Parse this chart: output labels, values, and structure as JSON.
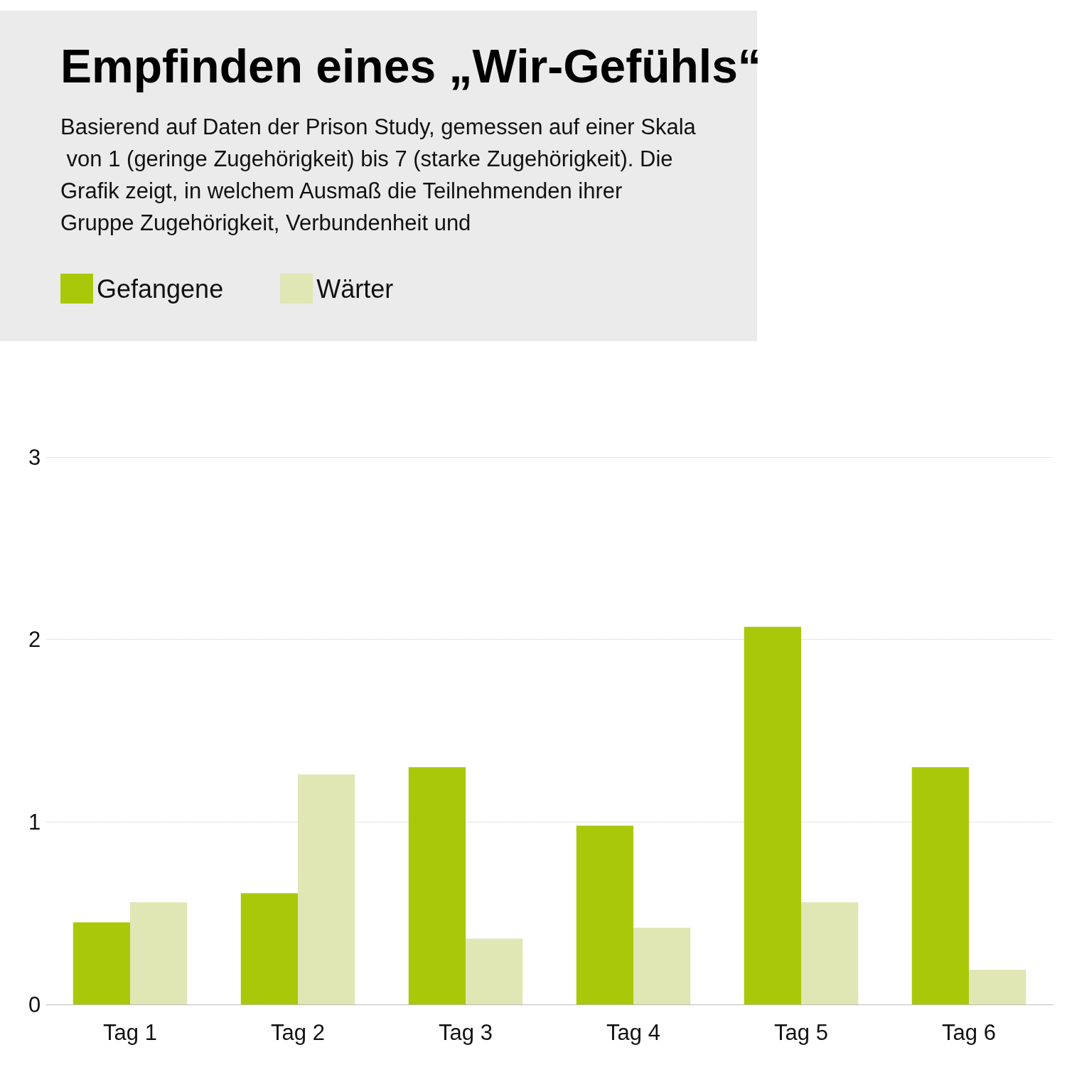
{
  "chart_data": {
    "type": "bar",
    "title": "Empfinden eines „Wir-Gefühls“",
    "subtitle": "Basierend auf Daten der Prison Study, gemessen auf einer Skala von 1 (geringe Zugehörigkeit) bis 7 (starke Zugehörigkeit). Die Grafik zeigt, in welchem Ausmaß die Teilnehmenden ihrer Gruppe Zugehörigkeit, Verbundenheit und",
    "categories": [
      "Tag 1",
      "Tag 2",
      "Tag 3",
      "Tag 4",
      "Tag 5",
      "Tag 6"
    ],
    "series": [
      {
        "name": "Gefangene",
        "color": "#aac80a",
        "values": [
          0.45,
          0.61,
          1.3,
          0.98,
          2.07,
          1.3
        ]
      },
      {
        "name": "Wärter",
        "color": "#e0e6b4",
        "values": [
          0.56,
          1.26,
          0.36,
          0.42,
          0.56,
          0.19
        ]
      }
    ],
    "ylim": [
      0,
      3
    ],
    "yticks": [
      0,
      1,
      2,
      3
    ],
    "grid": "y",
    "legend": "top left"
  }
}
